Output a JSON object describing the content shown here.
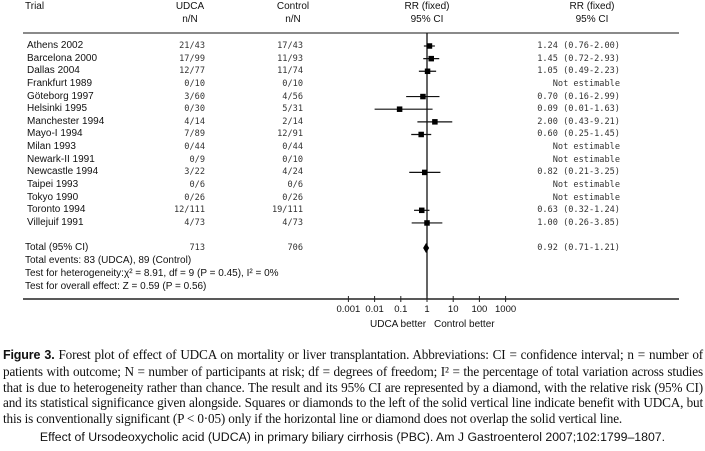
{
  "headers": {
    "trial": "Trial",
    "udca": [
      "UDCA",
      "n/N"
    ],
    "control": [
      "Control",
      "n/N"
    ],
    "rr_plot": [
      "RR (fixed)",
      "95% CI"
    ],
    "rr_text": [
      "RR (fixed)",
      "95% CI"
    ]
  },
  "chart_data": {
    "type": "forest",
    "x_scale": "log",
    "xlim": [
      0.001,
      1000
    ],
    "xticks": [
      "0.001",
      "0.01",
      "0.1",
      "1",
      "10",
      "100",
      "1000"
    ],
    "xtick_values": [
      0.001,
      0.01,
      0.1,
      1,
      10,
      100,
      1000
    ],
    "reference_line": 1,
    "left_label": "UDCA better",
    "right_label": "Control better",
    "studies": [
      {
        "trial": "Athens 2002",
        "udca": "21/43",
        "control": "17/43",
        "rr": 1.24,
        "lo": 0.76,
        "hi": 2.0,
        "text": "1.24 (0.76-2.00)"
      },
      {
        "trial": "Barcelona 2000",
        "udca": "17/99",
        "control": "11/93",
        "rr": 1.45,
        "lo": 0.72,
        "hi": 2.93,
        "text": "1.45 (0.72-2.93)"
      },
      {
        "trial": "Dallas 2004",
        "udca": "12/77",
        "control": "11/74",
        "rr": 1.05,
        "lo": 0.49,
        "hi": 2.23,
        "text": "1.05 (0.49-2.23)"
      },
      {
        "trial": "Frankfurt 1989",
        "udca": "0/10",
        "control": "0/10",
        "rr": null,
        "lo": null,
        "hi": null,
        "text": "Not estimable"
      },
      {
        "trial": "Göteborg 1997",
        "udca": "3/60",
        "control": "4/56",
        "rr": 0.7,
        "lo": 0.16,
        "hi": 2.99,
        "text": "0.70 (0.16-2.99)"
      },
      {
        "trial": "Helsinki 1995",
        "udca": "0/30",
        "control": "5/31",
        "rr": 0.09,
        "lo": 0.01,
        "hi": 1.63,
        "text": "0.09 (0.01-1.63)"
      },
      {
        "trial": "Manchester 1994",
        "udca": "4/14",
        "control": "2/14",
        "rr": 2.0,
        "lo": 0.43,
        "hi": 9.21,
        "text": "2.00 (0.43-9.21)"
      },
      {
        "trial": "Mayo-I 1994",
        "udca": "7/89",
        "control": "12/91",
        "rr": 0.6,
        "lo": 0.25,
        "hi": 1.45,
        "text": "0.60 (0.25-1.45)"
      },
      {
        "trial": "Milan 1993",
        "udca": "0/44",
        "control": "0/44",
        "rr": null,
        "lo": null,
        "hi": null,
        "text": "Not estimable"
      },
      {
        "trial": "Newark-II 1991",
        "udca": "0/9",
        "control": "0/10",
        "rr": null,
        "lo": null,
        "hi": null,
        "text": "Not estimable"
      },
      {
        "trial": "Newcastle 1994",
        "udca": "3/22",
        "control": "4/24",
        "rr": 0.82,
        "lo": 0.21,
        "hi": 3.25,
        "text": "0.82 (0.21-3.25)"
      },
      {
        "trial": "Taipei 1993",
        "udca": "0/6",
        "control": "0/6",
        "rr": null,
        "lo": null,
        "hi": null,
        "text": "Not estimable"
      },
      {
        "trial": "Tokyo 1990",
        "udca": "0/26",
        "control": "0/26",
        "rr": null,
        "lo": null,
        "hi": null,
        "text": "Not estimable"
      },
      {
        "trial": "Toronto 1994",
        "udca": "12/111",
        "control": "19/111",
        "rr": 0.63,
        "lo": 0.32,
        "hi": 1.24,
        "text": "0.63 (0.32-1.24)"
      },
      {
        "trial": "Villejuif 1991",
        "udca": "4/73",
        "control": "4/73",
        "rr": 1.0,
        "lo": 0.26,
        "hi": 3.85,
        "text": "1.00 (0.26-3.85)"
      }
    ],
    "total": {
      "label": "Total (95% CI)",
      "udca": "713",
      "control": "706",
      "rr": 0.92,
      "lo": 0.71,
      "hi": 1.21,
      "text": "0.92 (0.71-1.21)"
    },
    "total_events": "Total events: 83 (UDCA), 89 (Control)",
    "heterogeneity": "Test for heterogeneity:χ² = 8.91, df = 9 (P = 0.45), I² = 0%",
    "overall_effect": "Test for overall effect: Z = 0.59 (P = 0.56)"
  },
  "caption": {
    "label": "Figure 3.",
    "text": "Forest plot of effect of UDCA on mortality or liver transplantation. Abbreviations: CI = confidence interval; n = number of patients with outcome; N = number of participants at risk; df = degrees of freedom; I² = the percentage of total variation across studies that is due to heterogeneity rather than chance. The result and its 95% CI are represented by a diamond, with the relative risk (95% CI) and its statistical significance given alongside. Squares or diamonds to the left of the solid vertical line indicate benefit with UDCA, but this is conventionally significant (P < 0·05) only if the horizontal line or diamond does not overlap the solid vertical line."
  },
  "citation": "Effect of Ursodeoxycholic acid (UDCA) in primary biliary cirrhosis (PBC). Am J Gastroenterol 2007;102:1799–1807."
}
